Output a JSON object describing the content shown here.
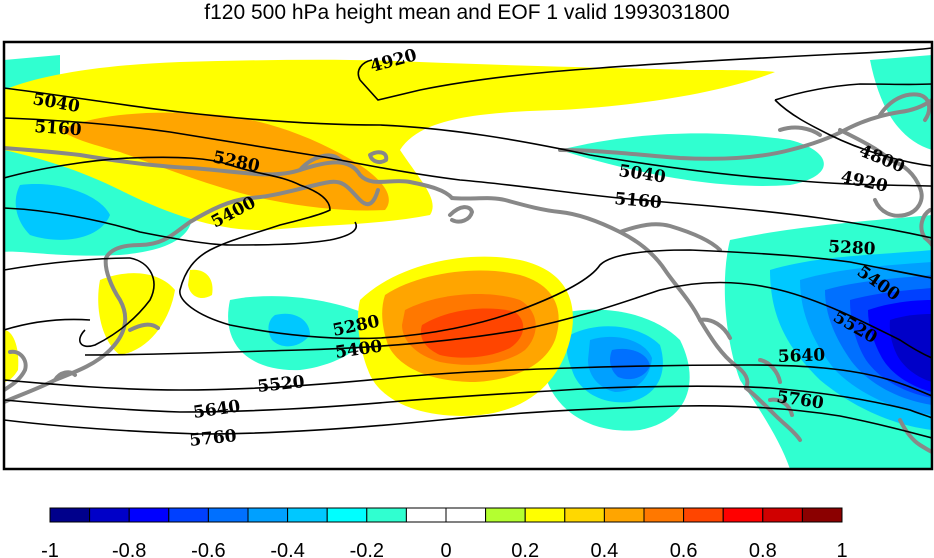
{
  "title": "f120 500 hPa height mean and EOF 1 valid 1993031800",
  "colorbar": {
    "colors": [
      "#00008b",
      "#0000c8",
      "#0000ff",
      "#0040ff",
      "#0070ff",
      "#00a0ff",
      "#00c8ff",
      "#00ffff",
      "#30ffd0",
      "#ffffff",
      "#ffffff",
      "#b4ff30",
      "#ffff00",
      "#ffd800",
      "#ffa500",
      "#ff7800",
      "#ff4500",
      "#ff0000",
      "#d00000",
      "#8b0000"
    ],
    "tick_labels": [
      "-1",
      "-0.8",
      "-0.6",
      "-0.4",
      "-0.2",
      "0",
      "0.2",
      "0.4",
      "0.6",
      "0.8",
      "1"
    ]
  },
  "contour_labels": [
    "4920",
    "5040",
    "5160",
    "5280",
    "5400",
    "4800",
    "4920",
    "5040",
    "5160",
    "5280",
    "5400",
    "5520",
    "5640",
    "5760",
    "5280",
    "5400",
    "5520",
    "5640",
    "5760"
  ]
}
